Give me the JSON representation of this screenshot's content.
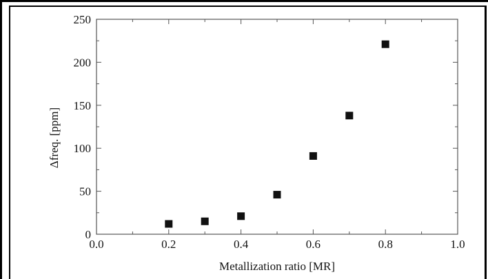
{
  "chart_data": {
    "type": "scatter",
    "title": "",
    "xlabel": "Metallization ratio [MR]",
    "ylabel": "Δfreq. [ppm]",
    "xlim": [
      0.0,
      1.0
    ],
    "ylim": [
      0,
      250
    ],
    "xticks": [
      0.0,
      0.2,
      0.4,
      0.6,
      0.8,
      1.0
    ],
    "xtick_labels": [
      "0.0",
      "0.2",
      "0.4",
      "0.6",
      "0.8",
      "1.0"
    ],
    "yticks": [
      0,
      50,
      100,
      150,
      200,
      250
    ],
    "ytick_labels": [
      "0",
      "50",
      "100",
      "150",
      "200",
      "250"
    ],
    "grid": false,
    "marker": "square",
    "marker_color": "#111111",
    "series": [
      {
        "x": [
          0.2,
          0.3,
          0.4,
          0.5,
          0.6,
          0.7,
          0.8
        ],
        "y": [
          12,
          15,
          21,
          46,
          91,
          138,
          221
        ]
      }
    ]
  }
}
